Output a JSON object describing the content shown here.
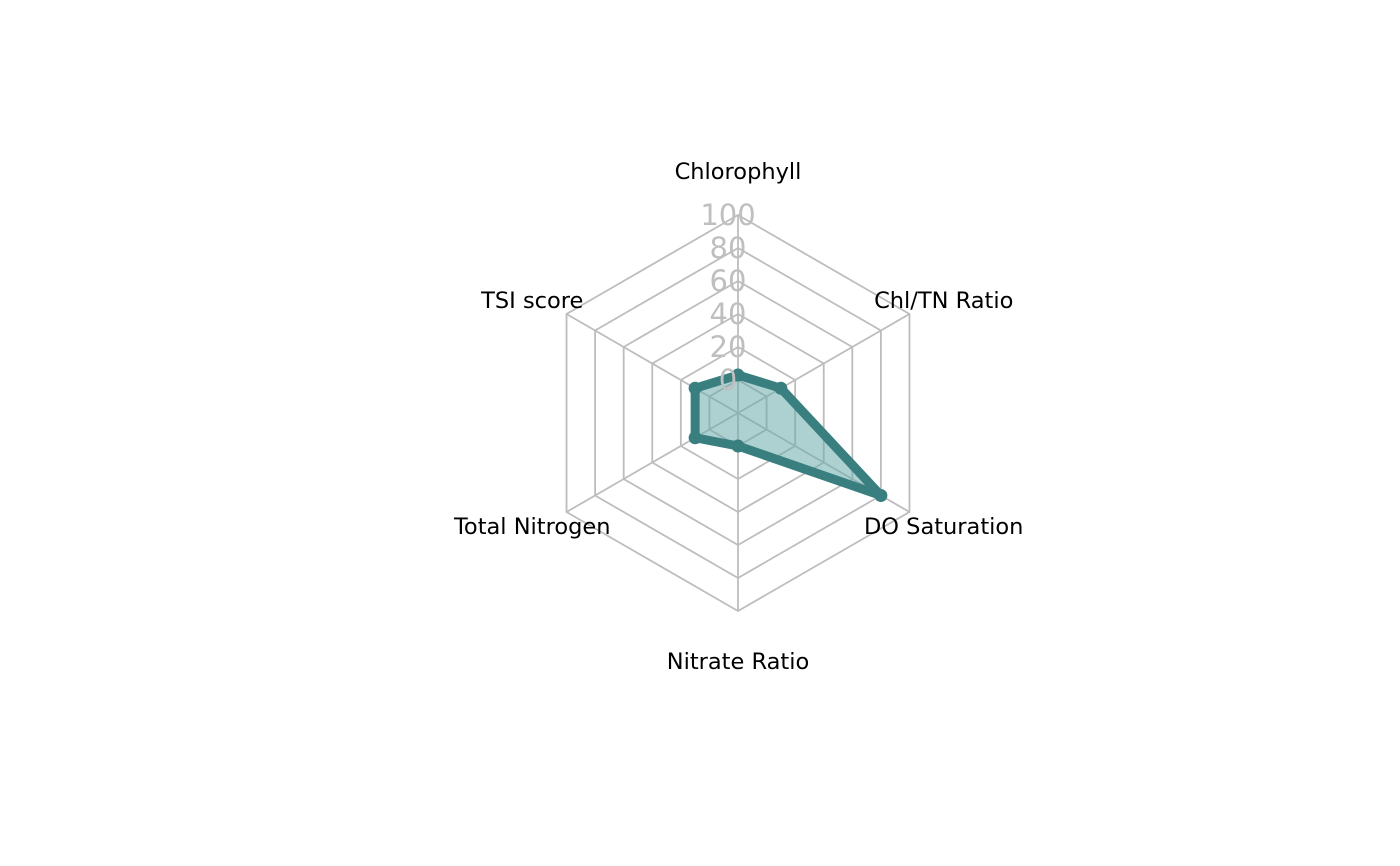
{
  "chart_data": {
    "type": "radar",
    "axes": [
      "Chlorophyll",
      "Chl/TN Ratio",
      "DO Saturation",
      "Nitrate Ratio",
      "Total Nitrogen",
      "TSI score"
    ],
    "range": [
      0,
      100
    ],
    "ticks": [
      "0",
      "20",
      "40",
      "60",
      "80",
      "100"
    ],
    "grid": true,
    "series": [
      {
        "values": [
          3,
          10,
          80,
          0,
          10,
          10
        ]
      }
    ]
  },
  "colors": {
    "series_line": "#3a7f80",
    "series_fill": "#69a9aa",
    "grid": "#bdbdbd",
    "tick_label": "#bfbfbf",
    "axis_label": "#000000"
  }
}
